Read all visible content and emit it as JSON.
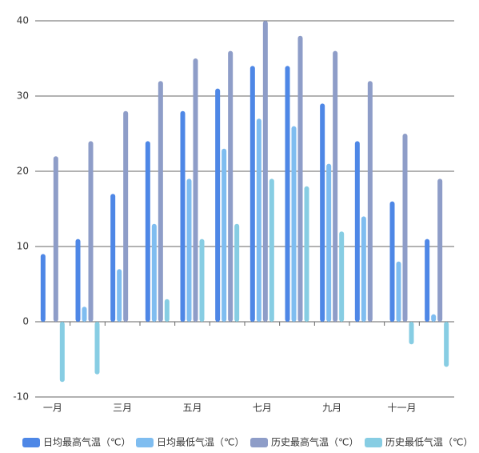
{
  "chart_data": {
    "type": "bar",
    "categories": [
      "一月",
      null,
      "三月",
      null,
      "五月",
      null,
      "七月",
      null,
      "九月",
      null,
      "十一月",
      null
    ],
    "series": [
      {
        "name": "日均最高气温（℃）",
        "color": "#4e87e6",
        "values": [
          9,
          11,
          17,
          24,
          28,
          31,
          34,
          34,
          29,
          24,
          16,
          11
        ]
      },
      {
        "name": "日均最低气温（℃）",
        "color": "#7fbdf0",
        "values": [
          0,
          2,
          7,
          13,
          19,
          23,
          27,
          26,
          21,
          14,
          8,
          1
        ]
      },
      {
        "name": "历史最高气温（℃）",
        "color": "#8e9dc8",
        "values": [
          22,
          24,
          28,
          32,
          35,
          36,
          40,
          38,
          36,
          32,
          25,
          19
        ]
      },
      {
        "name": "历史最低气温（℃）",
        "color": "#87cde3",
        "values": [
          -8,
          -7,
          0,
          3,
          11,
          13,
          19,
          18,
          12,
          0,
          -3,
          -6
        ]
      }
    ],
    "ylim": [
      -10,
      40
    ],
    "yticks": [
      -10,
      0,
      10,
      20,
      30,
      40
    ],
    "grid": true,
    "legend": "bottom"
  }
}
